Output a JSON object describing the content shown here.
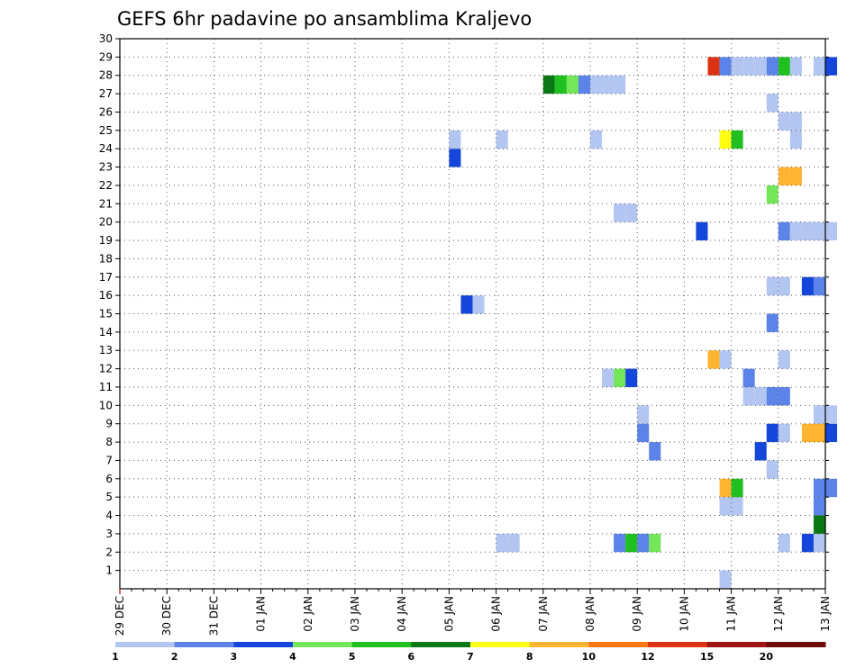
{
  "chart_data": {
    "type": "heatmap",
    "title": "GEFS 6hr padavine po ansamblima Kraljevo",
    "xlabel": "",
    "ylabel": "",
    "y_ticks": [
      "1",
      "2",
      "3",
      "4",
      "5",
      "6",
      "7",
      "8",
      "9",
      "10",
      "11",
      "12",
      "13",
      "14",
      "15",
      "16",
      "17",
      "18",
      "19",
      "20",
      "21",
      "22",
      "23",
      "24",
      "25",
      "26",
      "27",
      "28",
      "29",
      "30"
    ],
    "ylim": [
      0,
      30
    ],
    "x_ticks": [
      "29 DEC",
      "30 DEC",
      "31 DEC",
      "01 JAN",
      "02 JAN",
      "03 JAN",
      "04 JAN",
      "05 JAN",
      "06 JAN",
      "07 JAN",
      "08 JAN",
      "09 JAN",
      "10 JAN",
      "11 JAN",
      "12 JAN",
      "13 JAN"
    ],
    "xlim": [
      0,
      15
    ],
    "x_step_days": 0.25,
    "grid": true,
    "colorbar": {
      "labels": [
        "1",
        "2",
        "3",
        "4",
        "5",
        "6",
        "7",
        "8",
        "10",
        "12",
        "15",
        "20"
      ],
      "colors": [
        "#b3c6f2",
        "#5b83e8",
        "#1446dc",
        "#73e65a",
        "#20c020",
        "#0a7814",
        "#ffff14",
        "#ffb432",
        "#ff7814",
        "#dc3214",
        "#a01414",
        "#6e0a0a"
      ]
    },
    "cells": [
      {
        "x": 12.75,
        "y": 0,
        "c": 0
      },
      {
        "x": 14.0,
        "y": 2,
        "c": 0
      },
      {
        "x": 8.0,
        "y": 2,
        "c": 0
      },
      {
        "x": 8.25,
        "y": 2,
        "c": 0
      },
      {
        "x": 10.5,
        "y": 2,
        "c": 1
      },
      {
        "x": 10.75,
        "y": 2,
        "c": 4
      },
      {
        "x": 11.0,
        "y": 2,
        "c": 1
      },
      {
        "x": 11.25,
        "y": 2,
        "c": 3
      },
      {
        "x": 14.5,
        "y": 2,
        "c": 2
      },
      {
        "x": 14.75,
        "y": 2,
        "c": 0
      },
      {
        "x": 14.75,
        "y": 3,
        "c": 5
      },
      {
        "x": 12.75,
        "y": 4,
        "c": 0
      },
      {
        "x": 13.0,
        "y": 4,
        "c": 0
      },
      {
        "x": 14.75,
        "y": 4,
        "c": 1
      },
      {
        "x": 12.75,
        "y": 5,
        "c": 7
      },
      {
        "x": 13.0,
        "y": 5,
        "c": 4
      },
      {
        "x": 14.75,
        "y": 5,
        "c": 1
      },
      {
        "x": 15.0,
        "y": 5,
        "c": 1
      },
      {
        "x": 13.75,
        "y": 6,
        "c": 0
      },
      {
        "x": 11.25,
        "y": 7,
        "c": 1
      },
      {
        "x": 13.5,
        "y": 7,
        "c": 2
      },
      {
        "x": 11.0,
        "y": 8,
        "c": 1
      },
      {
        "x": 13.75,
        "y": 8,
        "c": 2
      },
      {
        "x": 14.0,
        "y": 8,
        "c": 0
      },
      {
        "x": 14.5,
        "y": 8,
        "c": 7
      },
      {
        "x": 14.75,
        "y": 8,
        "c": 7
      },
      {
        "x": 15.0,
        "y": 8,
        "c": 2
      },
      {
        "x": 11.0,
        "y": 9,
        "c": 0
      },
      {
        "x": 14.75,
        "y": 9,
        "c": 0
      },
      {
        "x": 15.0,
        "y": 9,
        "c": 0
      },
      {
        "x": 13.25,
        "y": 10,
        "c": 0
      },
      {
        "x": 13.5,
        "y": 10,
        "c": 0
      },
      {
        "x": 13.75,
        "y": 10,
        "c": 1
      },
      {
        "x": 14.0,
        "y": 10,
        "c": 1
      },
      {
        "x": 10.25,
        "y": 11,
        "c": 0
      },
      {
        "x": 10.5,
        "y": 11,
        "c": 3
      },
      {
        "x": 10.75,
        "y": 11,
        "c": 2
      },
      {
        "x": 13.25,
        "y": 11,
        "c": 1
      },
      {
        "x": 12.5,
        "y": 12,
        "c": 7
      },
      {
        "x": 12.75,
        "y": 12,
        "c": 0
      },
      {
        "x": 14.0,
        "y": 12,
        "c": 0
      },
      {
        "x": 13.75,
        "y": 14,
        "c": 1
      },
      {
        "x": 7.25,
        "y": 15,
        "c": 2
      },
      {
        "x": 7.5,
        "y": 15,
        "c": 0
      },
      {
        "x": 13.75,
        "y": 16,
        "c": 0
      },
      {
        "x": 14.0,
        "y": 16,
        "c": 0
      },
      {
        "x": 14.5,
        "y": 16,
        "c": 2
      },
      {
        "x": 14.75,
        "y": 16,
        "c": 1
      },
      {
        "x": 12.25,
        "y": 19,
        "c": 2
      },
      {
        "x": 14.0,
        "y": 19,
        "c": 1
      },
      {
        "x": 14.25,
        "y": 19,
        "c": 0
      },
      {
        "x": 14.5,
        "y": 19,
        "c": 0
      },
      {
        "x": 14.75,
        "y": 19,
        "c": 0
      },
      {
        "x": 15.0,
        "y": 19,
        "c": 0
      },
      {
        "x": 10.5,
        "y": 20,
        "c": 0
      },
      {
        "x": 10.75,
        "y": 20,
        "c": 0
      },
      {
        "x": 13.75,
        "y": 21,
        "c": 3
      },
      {
        "x": 14.0,
        "y": 22,
        "c": 7
      },
      {
        "x": 14.25,
        "y": 22,
        "c": 7
      },
      {
        "x": 7.0,
        "y": 23,
        "c": 2
      },
      {
        "x": 7.0,
        "y": 24,
        "c": 0
      },
      {
        "x": 8.0,
        "y": 24,
        "c": 0
      },
      {
        "x": 10.0,
        "y": 24,
        "c": 0
      },
      {
        "x": 12.75,
        "y": 24,
        "c": 6
      },
      {
        "x": 13.0,
        "y": 24,
        "c": 4
      },
      {
        "x": 14.25,
        "y": 24,
        "c": 0
      },
      {
        "x": 14.0,
        "y": 25,
        "c": 0
      },
      {
        "x": 14.25,
        "y": 25,
        "c": 0
      },
      {
        "x": 13.75,
        "y": 26,
        "c": 0
      },
      {
        "x": 9.0,
        "y": 27,
        "c": 5
      },
      {
        "x": 9.25,
        "y": 27,
        "c": 4
      },
      {
        "x": 9.5,
        "y": 27,
        "c": 3
      },
      {
        "x": 9.75,
        "y": 27,
        "c": 1
      },
      {
        "x": 10.0,
        "y": 27,
        "c": 0
      },
      {
        "x": 10.25,
        "y": 27,
        "c": 0
      },
      {
        "x": 10.5,
        "y": 27,
        "c": 0
      },
      {
        "x": 12.5,
        "y": 28,
        "c": 9
      },
      {
        "x": 12.75,
        "y": 28,
        "c": 1
      },
      {
        "x": 13.0,
        "y": 28,
        "c": 0
      },
      {
        "x": 13.25,
        "y": 28,
        "c": 0
      },
      {
        "x": 13.5,
        "y": 28,
        "c": 0
      },
      {
        "x": 13.75,
        "y": 28,
        "c": 1
      },
      {
        "x": 14.0,
        "y": 28,
        "c": 4
      },
      {
        "x": 14.25,
        "y": 28,
        "c": 0
      },
      {
        "x": 14.75,
        "y": 28,
        "c": 0
      },
      {
        "x": 15.0,
        "y": 28,
        "c": 2
      }
    ]
  }
}
